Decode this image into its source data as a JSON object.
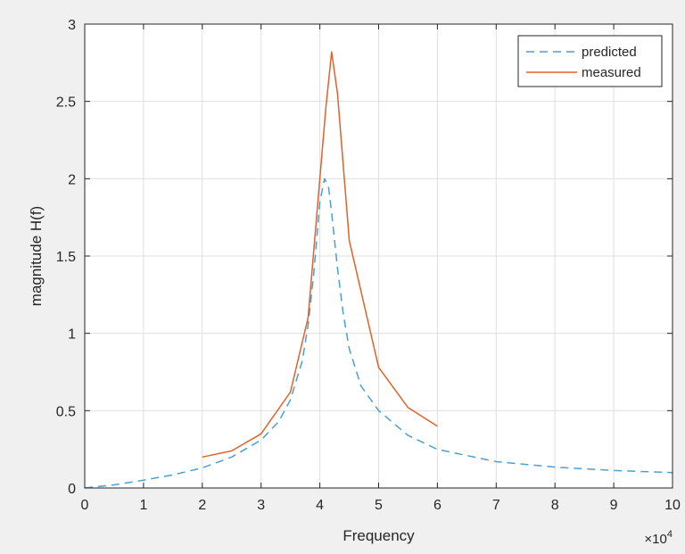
{
  "chart_data": {
    "type": "line",
    "title": "",
    "xlabel": "Frequency",
    "ylabel": "magnitude H(f)",
    "x_exponent_label": "×10",
    "x_exponent_power": "4",
    "xlim": [
      0,
      10
    ],
    "ylim": [
      0,
      3
    ],
    "xticks": [
      "0",
      "1",
      "2",
      "3",
      "4",
      "5",
      "6",
      "7",
      "8",
      "9",
      "10"
    ],
    "yticks": [
      "0",
      "0.5",
      "1",
      "1.5",
      "2",
      "2.5",
      "3"
    ],
    "grid": true,
    "legend_position": "top-right",
    "series": [
      {
        "name": "predicted",
        "style": "dashed",
        "color": "#4a9fd4",
        "points": [
          [
            0,
            0
          ],
          [
            0.5,
            0.02
          ],
          [
            1,
            0.05
          ],
          [
            1.5,
            0.085
          ],
          [
            2,
            0.13
          ],
          [
            2.5,
            0.2
          ],
          [
            3,
            0.31
          ],
          [
            3.3,
            0.43
          ],
          [
            3.5,
            0.57
          ],
          [
            3.7,
            0.82
          ],
          [
            3.8,
            1.05
          ],
          [
            3.9,
            1.4
          ],
          [
            4.0,
            1.85
          ],
          [
            4.08,
            2.0
          ],
          [
            4.15,
            1.94
          ],
          [
            4.2,
            1.78
          ],
          [
            4.3,
            1.42
          ],
          [
            4.4,
            1.12
          ],
          [
            4.5,
            0.9
          ],
          [
            4.7,
            0.66
          ],
          [
            5,
            0.5
          ],
          [
            5.5,
            0.34
          ],
          [
            6,
            0.25
          ],
          [
            7,
            0.17
          ],
          [
            8,
            0.135
          ],
          [
            9,
            0.113
          ],
          [
            10,
            0.1
          ]
        ]
      },
      {
        "name": "measured",
        "style": "solid",
        "color": "#e0622a",
        "points": [
          [
            2,
            0.2
          ],
          [
            2.5,
            0.24
          ],
          [
            3,
            0.35
          ],
          [
            3.5,
            0.62
          ],
          [
            3.8,
            1.1
          ],
          [
            4.1,
            2.45
          ],
          [
            4.2,
            2.82
          ],
          [
            4.3,
            2.55
          ],
          [
            4.5,
            1.6
          ],
          [
            5,
            0.78
          ],
          [
            5.5,
            0.52
          ],
          [
            6,
            0.4
          ]
        ]
      }
    ]
  }
}
